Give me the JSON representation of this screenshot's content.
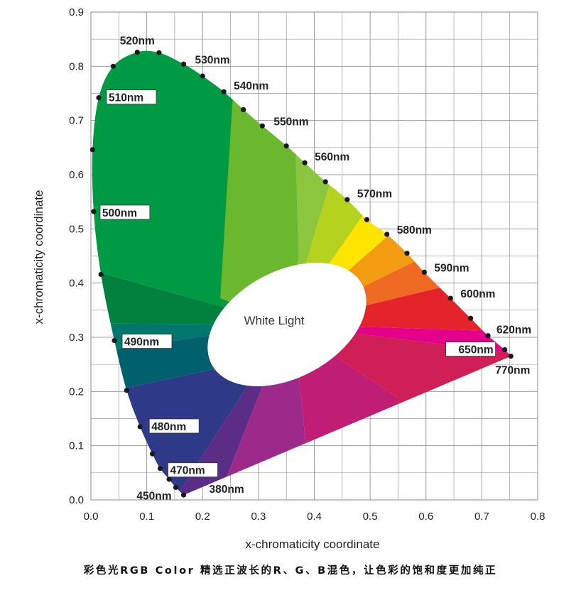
{
  "chart_data": {
    "type": "scatter",
    "xlabel": "x-chromaticity coordinate",
    "ylabel": "x-chromaticity coordinate",
    "xlim": [
      0.0,
      0.8
    ],
    "ylim": [
      0.0,
      0.9
    ],
    "x_ticks": [
      "0.0",
      "0.1",
      "0.2",
      "0.3",
      "0.4",
      "0.5",
      "0.6",
      "0.7",
      "0.8"
    ],
    "y_ticks": [
      "0.0",
      "0.1",
      "0.2",
      "0.3",
      "0.4",
      "0.5",
      "0.6",
      "0.7",
      "0.8",
      "0.9"
    ],
    "grid": true,
    "center_label": "White Light",
    "locus_points": [
      {
        "x": 0.166,
        "y": 0.009
      },
      {
        "x": 0.152,
        "y": 0.023
      },
      {
        "x": 0.14,
        "y": 0.038
      },
      {
        "x": 0.124,
        "y": 0.058
      },
      {
        "x": 0.11,
        "y": 0.085
      },
      {
        "x": 0.088,
        "y": 0.135
      },
      {
        "x": 0.064,
        "y": 0.202
      },
      {
        "x": 0.042,
        "y": 0.294
      },
      {
        "x": 0.018,
        "y": 0.416
      },
      {
        "x": 0.005,
        "y": 0.532
      },
      {
        "x": 0.003,
        "y": 0.646
      },
      {
        "x": 0.014,
        "y": 0.742
      },
      {
        "x": 0.04,
        "y": 0.8
      },
      {
        "x": 0.083,
        "y": 0.826
      },
      {
        "x": 0.122,
        "y": 0.825
      },
      {
        "x": 0.166,
        "y": 0.804
      },
      {
        "x": 0.2,
        "y": 0.782
      },
      {
        "x": 0.238,
        "y": 0.753
      },
      {
        "x": 0.273,
        "y": 0.72
      },
      {
        "x": 0.307,
        "y": 0.69
      },
      {
        "x": 0.35,
        "y": 0.653
      },
      {
        "x": 0.383,
        "y": 0.622
      },
      {
        "x": 0.42,
        "y": 0.587
      },
      {
        "x": 0.459,
        "y": 0.554
      },
      {
        "x": 0.494,
        "y": 0.517
      },
      {
        "x": 0.53,
        "y": 0.49
      },
      {
        "x": 0.566,
        "y": 0.455
      },
      {
        "x": 0.597,
        "y": 0.42
      },
      {
        "x": 0.644,
        "y": 0.372
      },
      {
        "x": 0.68,
        "y": 0.335
      },
      {
        "x": 0.711,
        "y": 0.303
      },
      {
        "x": 0.741,
        "y": 0.277
      },
      {
        "x": 0.752,
        "y": 0.265
      }
    ],
    "wavelength_labels": [
      {
        "text": "520nm",
        "x": 0.083,
        "y": 0.826
      },
      {
        "text": "530nm",
        "x": 0.166,
        "y": 0.804
      },
      {
        "text": "540nm",
        "x": 0.238,
        "y": 0.753
      },
      {
        "text": "550nm",
        "x": 0.307,
        "y": 0.69
      },
      {
        "text": "560nm",
        "x": 0.383,
        "y": 0.622
      },
      {
        "text": "570nm",
        "x": 0.459,
        "y": 0.554
      },
      {
        "text": "580nm",
        "x": 0.53,
        "y": 0.49
      },
      {
        "text": "590nm",
        "x": 0.597,
        "y": 0.42
      },
      {
        "text": "600nm",
        "x": 0.644,
        "y": 0.372
      },
      {
        "text": "620nm",
        "x": 0.711,
        "y": 0.303
      },
      {
        "text": "650nm",
        "x": 0.741,
        "y": 0.277
      },
      {
        "text": "770nm",
        "x": 0.752,
        "y": 0.265
      },
      {
        "text": "510nm",
        "x": 0.014,
        "y": 0.742
      },
      {
        "text": "500nm",
        "x": 0.005,
        "y": 0.532
      },
      {
        "text": "490nm",
        "x": 0.042,
        "y": 0.294
      },
      {
        "text": "480nm",
        "x": 0.088,
        "y": 0.135
      },
      {
        "text": "470nm",
        "x": 0.124,
        "y": 0.058
      },
      {
        "text": "450nm",
        "x": 0.152,
        "y": 0.023
      },
      {
        "text": "380nm",
        "x": 0.166,
        "y": 0.009
      }
    ],
    "colors": {
      "green": "#009a44",
      "yellow_green": "#6ab82e",
      "yellow": "#ffe400",
      "orange": "#f39c12",
      "red": "#e5232b",
      "magenta": "#e4008a",
      "purple": "#9b2a8a",
      "blue": "#2e3a87",
      "teal": "#00776c"
    }
  },
  "caption": "彩色光RGB Color 精选正波长的R、G、B混色，让色彩的饱和度更加纯正"
}
